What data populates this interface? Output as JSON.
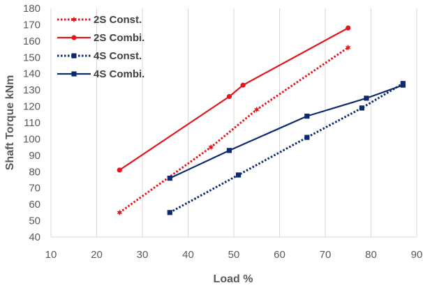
{
  "chart_data": {
    "type": "line",
    "xlabel": "Load %",
    "ylabel": "Shaft Torque kNm",
    "xlim": [
      10,
      90
    ],
    "ylim": [
      40,
      180
    ],
    "xticks": [
      10,
      20,
      30,
      40,
      50,
      60,
      70,
      80,
      90
    ],
    "yticks": [
      40,
      50,
      60,
      70,
      80,
      90,
      100,
      110,
      120,
      130,
      140,
      150,
      160,
      170,
      180
    ],
    "grid": "vertical",
    "legend_position": "top-left",
    "series": [
      {
        "name": "2S Const.",
        "color": "#e8141c",
        "line_style": "dotted",
        "marker": "star",
        "x": [
          25,
          45,
          55,
          75
        ],
        "y": [
          55,
          95,
          118,
          156
        ]
      },
      {
        "name": "2S Combi.",
        "color": "#e8141c",
        "line_style": "solid",
        "marker": "circle",
        "x": [
          25,
          49,
          52,
          75
        ],
        "y": [
          81,
          126,
          133,
          168
        ]
      },
      {
        "name": "4S Const.",
        "color": "#0d2a6e",
        "line_style": "dotted",
        "marker": "square",
        "x": [
          36,
          51,
          66,
          78,
          87
        ],
        "y": [
          55,
          78,
          101,
          119,
          134
        ]
      },
      {
        "name": "4S Combi.",
        "color": "#0d2a6e",
        "line_style": "solid",
        "marker": "square",
        "x": [
          36,
          49,
          66,
          79,
          87
        ],
        "y": [
          76,
          93,
          114,
          125,
          133
        ]
      }
    ]
  }
}
